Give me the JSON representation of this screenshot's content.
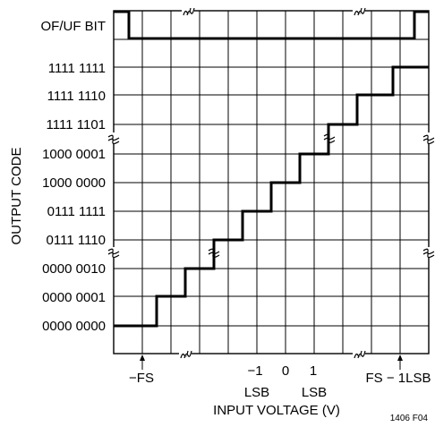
{
  "diagram": {
    "y_axis_title": "OUTPUT CODE",
    "x_axis_title": "INPUT VOLTAGE (V)",
    "figure_id": "1406 F04",
    "flag_row_label": "OF/UF BIT",
    "codes_top_to_bottom": [
      "1111 1111",
      "1111 1110",
      "1111 1101",
      "1000 0001",
      "1000 0000",
      "0111 1111",
      "0111 1110",
      "0000 0010",
      "0000 0001",
      "0000 0000"
    ],
    "x_labels": {
      "neg_fs": "−FS",
      "neg_one": "−1",
      "zero": "0",
      "pos_one": "1",
      "lsb_left": "LSB",
      "lsb_right": "LSB",
      "fs_minus": "FS − 1LSB"
    }
  }
}
